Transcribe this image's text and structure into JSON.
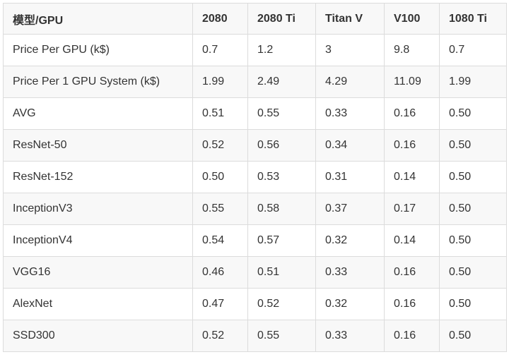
{
  "table": {
    "headers": [
      "模型/GPU",
      "2080",
      "2080 Ti",
      "Titan V",
      "V100",
      "1080 Ti"
    ],
    "rows": [
      [
        "Price Per GPU (k$)",
        "0.7",
        "1.2",
        "3",
        "9.8",
        "0.7"
      ],
      [
        "Price Per 1 GPU System (k$)",
        "1.99",
        "2.49",
        "4.29",
        "11.09",
        "1.99"
      ],
      [
        "AVG",
        "0.51",
        "0.55",
        "0.33",
        "0.16",
        "0.50"
      ],
      [
        "ResNet-50",
        "0.52",
        "0.56",
        "0.34",
        "0.16",
        "0.50"
      ],
      [
        "ResNet-152",
        "0.50",
        "0.53",
        "0.31",
        "0.14",
        "0.50"
      ],
      [
        "InceptionV3",
        "0.55",
        "0.58",
        "0.37",
        "0.17",
        "0.50"
      ],
      [
        "InceptionV4",
        "0.54",
        "0.57",
        "0.32",
        "0.14",
        "0.50"
      ],
      [
        "VGG16",
        "0.46",
        "0.51",
        "0.33",
        "0.16",
        "0.50"
      ],
      [
        "AlexNet",
        "0.47",
        "0.52",
        "0.32",
        "0.16",
        "0.50"
      ],
      [
        "SSD300",
        "0.52",
        "0.55",
        "0.33",
        "0.16",
        "0.50"
      ]
    ]
  },
  "colors": {
    "border": "#dcdcdc",
    "header_bg": "#f8f8f8",
    "stripe_bg": "#f8f8f8",
    "text": "#333333"
  }
}
